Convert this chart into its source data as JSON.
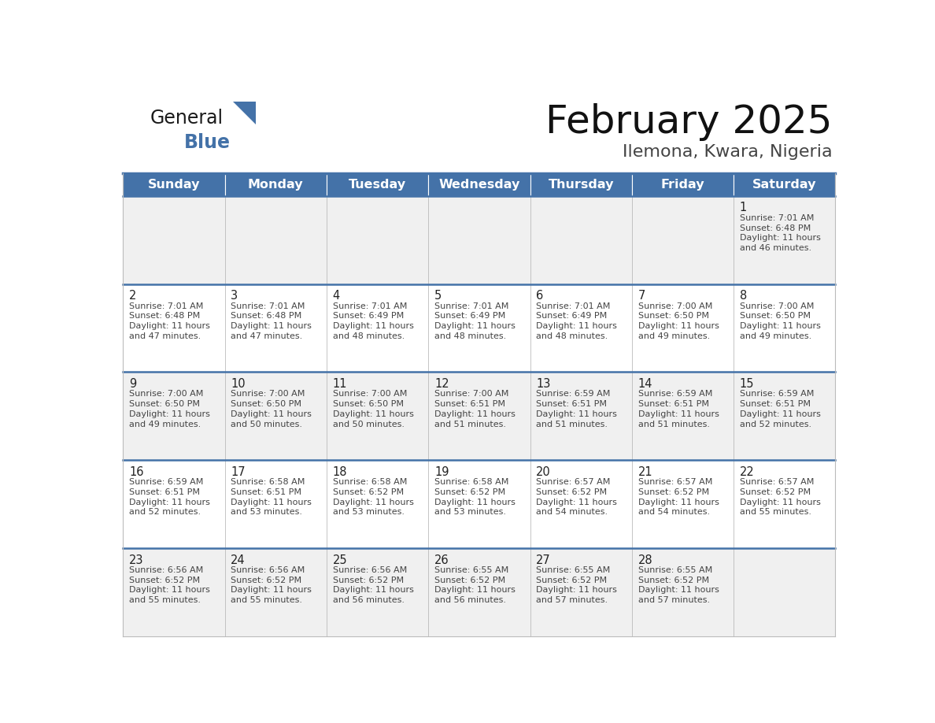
{
  "title": "February 2025",
  "subtitle": "Ilemona, Kwara, Nigeria",
  "days_of_week": [
    "Sunday",
    "Monday",
    "Tuesday",
    "Wednesday",
    "Thursday",
    "Friday",
    "Saturday"
  ],
  "header_bg": "#4472A8",
  "header_text": "#FFFFFF",
  "row_bg_odd": "#F0F0F0",
  "row_bg_even": "#FFFFFF",
  "border_color": "#4472A8",
  "cell_border_color": "#BBBBBB",
  "text_color": "#333333",
  "info_text_color": "#444444",
  "calendar_data": [
    [
      null,
      null,
      null,
      null,
      null,
      null,
      {
        "day": 1,
        "sunrise": "7:01 AM",
        "sunset": "6:48 PM",
        "daylight": "11 hours and 46 minutes."
      }
    ],
    [
      {
        "day": 2,
        "sunrise": "7:01 AM",
        "sunset": "6:48 PM",
        "daylight": "11 hours and 47 minutes."
      },
      {
        "day": 3,
        "sunrise": "7:01 AM",
        "sunset": "6:48 PM",
        "daylight": "11 hours and 47 minutes."
      },
      {
        "day": 4,
        "sunrise": "7:01 AM",
        "sunset": "6:49 PM",
        "daylight": "11 hours and 48 minutes."
      },
      {
        "day": 5,
        "sunrise": "7:01 AM",
        "sunset": "6:49 PM",
        "daylight": "11 hours and 48 minutes."
      },
      {
        "day": 6,
        "sunrise": "7:01 AM",
        "sunset": "6:49 PM",
        "daylight": "11 hours and 48 minutes."
      },
      {
        "day": 7,
        "sunrise": "7:00 AM",
        "sunset": "6:50 PM",
        "daylight": "11 hours and 49 minutes."
      },
      {
        "day": 8,
        "sunrise": "7:00 AM",
        "sunset": "6:50 PM",
        "daylight": "11 hours and 49 minutes."
      }
    ],
    [
      {
        "day": 9,
        "sunrise": "7:00 AM",
        "sunset": "6:50 PM",
        "daylight": "11 hours and 49 minutes."
      },
      {
        "day": 10,
        "sunrise": "7:00 AM",
        "sunset": "6:50 PM",
        "daylight": "11 hours and 50 minutes."
      },
      {
        "day": 11,
        "sunrise": "7:00 AM",
        "sunset": "6:50 PM",
        "daylight": "11 hours and 50 minutes."
      },
      {
        "day": 12,
        "sunrise": "7:00 AM",
        "sunset": "6:51 PM",
        "daylight": "11 hours and 51 minutes."
      },
      {
        "day": 13,
        "sunrise": "6:59 AM",
        "sunset": "6:51 PM",
        "daylight": "11 hours and 51 minutes."
      },
      {
        "day": 14,
        "sunrise": "6:59 AM",
        "sunset": "6:51 PM",
        "daylight": "11 hours and 51 minutes."
      },
      {
        "day": 15,
        "sunrise": "6:59 AM",
        "sunset": "6:51 PM",
        "daylight": "11 hours and 52 minutes."
      }
    ],
    [
      {
        "day": 16,
        "sunrise": "6:59 AM",
        "sunset": "6:51 PM",
        "daylight": "11 hours and 52 minutes."
      },
      {
        "day": 17,
        "sunrise": "6:58 AM",
        "sunset": "6:51 PM",
        "daylight": "11 hours and 53 minutes."
      },
      {
        "day": 18,
        "sunrise": "6:58 AM",
        "sunset": "6:52 PM",
        "daylight": "11 hours and 53 minutes."
      },
      {
        "day": 19,
        "sunrise": "6:58 AM",
        "sunset": "6:52 PM",
        "daylight": "11 hours and 53 minutes."
      },
      {
        "day": 20,
        "sunrise": "6:57 AM",
        "sunset": "6:52 PM",
        "daylight": "11 hours and 54 minutes."
      },
      {
        "day": 21,
        "sunrise": "6:57 AM",
        "sunset": "6:52 PM",
        "daylight": "11 hours and 54 minutes."
      },
      {
        "day": 22,
        "sunrise": "6:57 AM",
        "sunset": "6:52 PM",
        "daylight": "11 hours and 55 minutes."
      }
    ],
    [
      {
        "day": 23,
        "sunrise": "6:56 AM",
        "sunset": "6:52 PM",
        "daylight": "11 hours and 55 minutes."
      },
      {
        "day": 24,
        "sunrise": "6:56 AM",
        "sunset": "6:52 PM",
        "daylight": "11 hours and 55 minutes."
      },
      {
        "day": 25,
        "sunrise": "6:56 AM",
        "sunset": "6:52 PM",
        "daylight": "11 hours and 56 minutes."
      },
      {
        "day": 26,
        "sunrise": "6:55 AM",
        "sunset": "6:52 PM",
        "daylight": "11 hours and 56 minutes."
      },
      {
        "day": 27,
        "sunrise": "6:55 AM",
        "sunset": "6:52 PM",
        "daylight": "11 hours and 57 minutes."
      },
      {
        "day": 28,
        "sunrise": "6:55 AM",
        "sunset": "6:52 PM",
        "daylight": "11 hours and 57 minutes."
      },
      null
    ]
  ]
}
